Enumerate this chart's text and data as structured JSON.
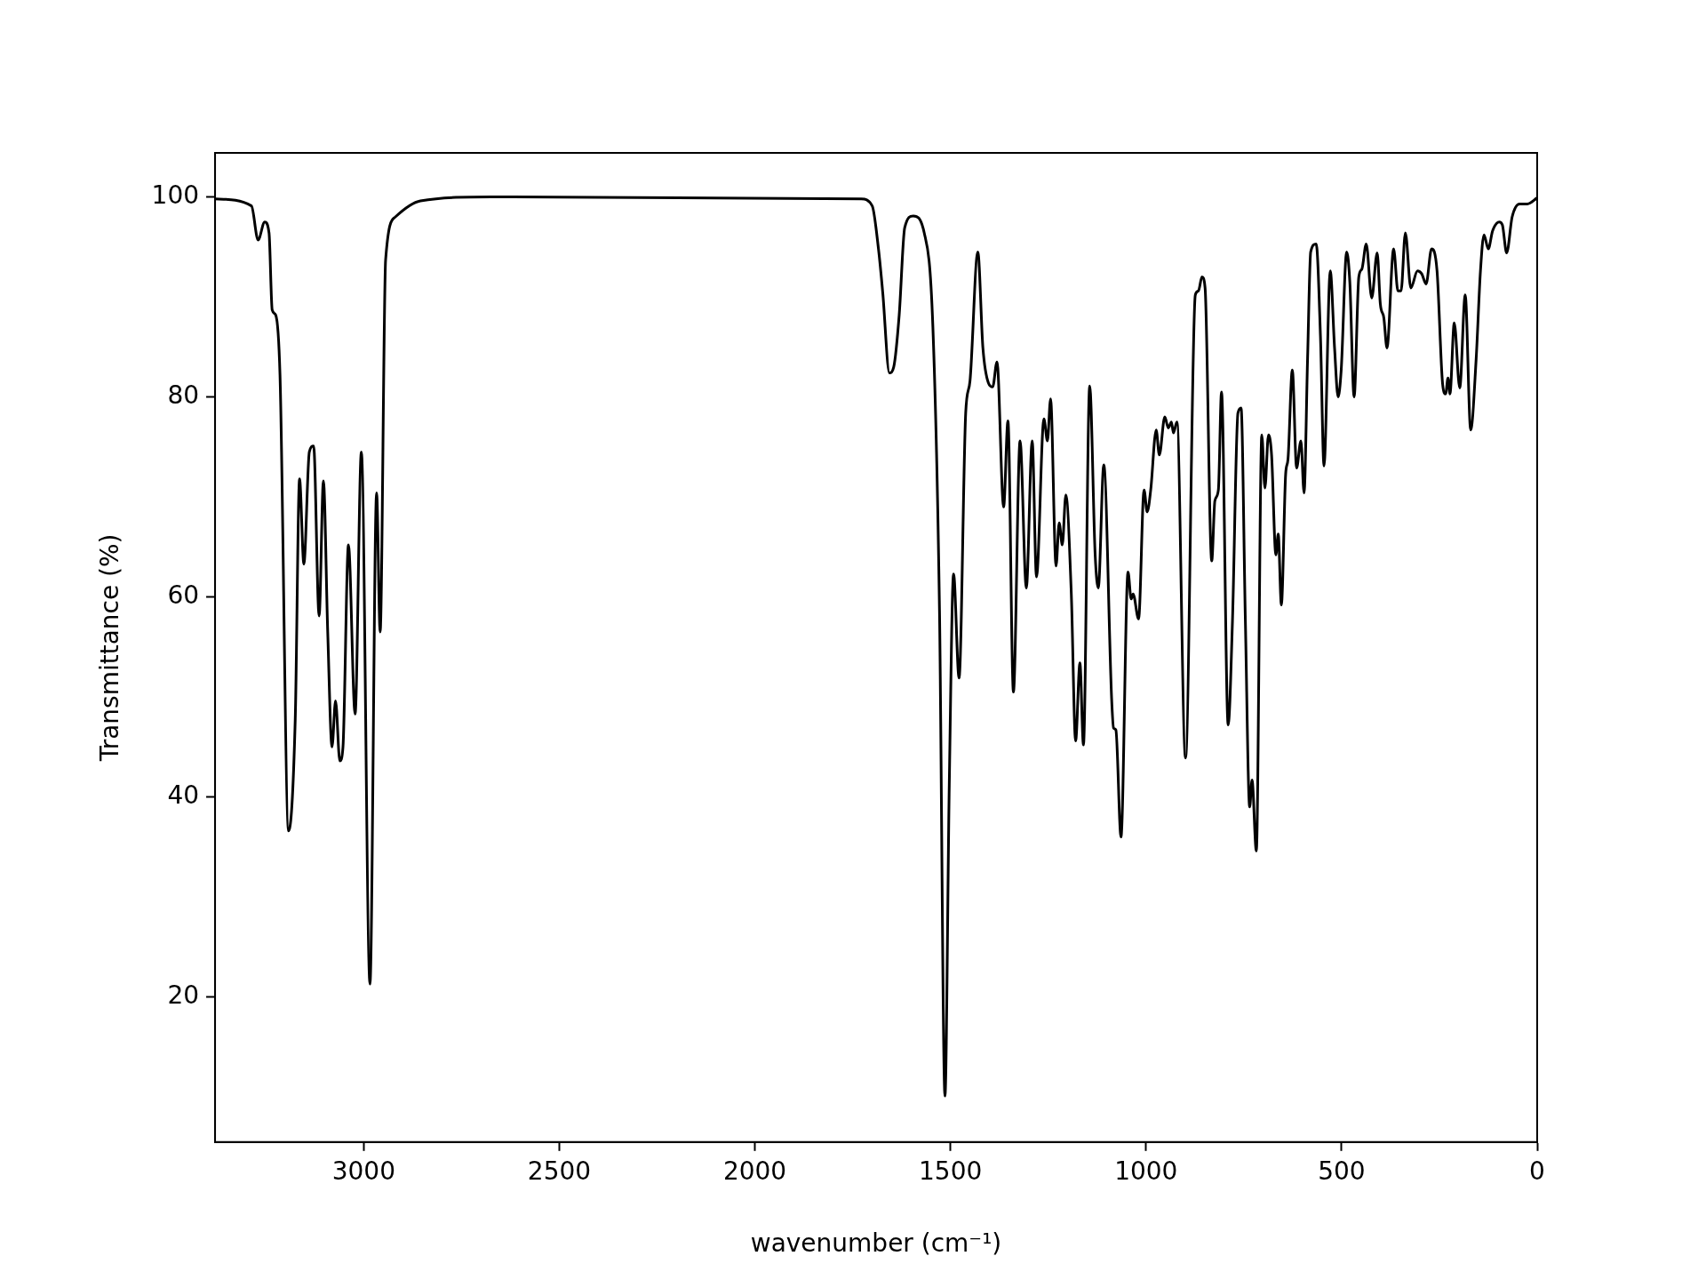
{
  "chart_data": {
    "type": "line",
    "xlabel": "wavenumber (cm⁻¹)",
    "ylabel": "Transmittance (%)",
    "xlim": [
      3380,
      0
    ],
    "ylim": [
      5.5,
      104.4
    ],
    "xticks": [
      3000,
      2500,
      2000,
      1500,
      1000,
      500,
      0
    ],
    "yticks": [
      20,
      40,
      60,
      80,
      100
    ],
    "legend": false,
    "marker": "none",
    "line_style": "solid",
    "series": [
      {
        "color": "#000000",
        "x": [
          3380,
          3287,
          3270,
          3253,
          3242,
          3234,
          3225,
          3214,
          3192,
          3175,
          3164,
          3153,
          3139,
          3128,
          3114,
          3103,
          3092,
          3081,
          3072,
          3061,
          3053,
          3039,
          3022,
          3006,
          2984,
          2967,
          2958,
          2944,
          2919,
          2855,
          2674,
          1728,
          1700,
          1684,
          1673,
          1656,
          1645,
          1631,
          1617,
          1595,
          1567,
          1545,
          1528,
          1514,
          1503,
          1492,
          1478,
          1461,
          1450,
          1430,
          1417,
          1403,
          1392,
          1381,
          1364,
          1353,
          1339,
          1322,
          1306,
          1291,
          1280,
          1261,
          1252,
          1244,
          1230,
          1222,
          1214,
          1205,
          1191,
          1180,
          1169,
          1160,
          1144,
          1130,
          1122,
          1108,
          1088,
          1083,
          1077,
          1064,
          1046,
          1038,
          1033,
          1019,
          1005,
          997,
          988,
          974,
          966,
          952,
          943,
          935,
          930,
          921,
          899,
          874,
          866,
          857,
          849,
          832,
          824,
          815,
          807,
          790,
          779,
          765,
          757,
          746,
          735,
          729,
          718,
          704,
          696,
          687,
          679,
          668,
          662,
          654,
          643,
          637,
          626,
          615,
          604,
          596,
          587,
          579,
          565,
          554,
          545,
          529,
          518,
          509,
          501,
          487,
          479,
          468,
          456,
          448,
          437,
          423,
          409,
          401,
          392,
          384,
          367,
          356,
          348,
          337,
          323,
          306,
          295,
          284,
          270,
          256,
          242,
          234,
          228,
          223,
          212,
          198,
          184,
          170,
          156,
          145,
          136,
          125,
          114,
          97,
          89,
          78,
          64,
          45,
          25,
          0
        ],
        "values": [
          99.8,
          99.1,
          95.7,
          97.5,
          96.4,
          88.7,
          88.2,
          82.2,
          36.6,
          47.8,
          71.8,
          63.3,
          74.5,
          75.1,
          58.1,
          71.6,
          56.5,
          45.0,
          49.6,
          43.6,
          45.0,
          65.2,
          48.3,
          74.5,
          21.3,
          70.4,
          56.5,
          93.7,
          98.0,
          99.6,
          100,
          99.8,
          99.1,
          94.8,
          90.4,
          82.4,
          83.0,
          88.2,
          96.9,
          98.1,
          96.4,
          87.1,
          58.7,
          10.1,
          41.2,
          62.3,
          51.9,
          78.4,
          81.6,
          94.5,
          84.9,
          81.4,
          81.0,
          83.5,
          69.0,
          77.6,
          50.5,
          75.6,
          60.9,
          75.6,
          62.0,
          77.8,
          75.6,
          79.8,
          63.1,
          67.4,
          65.2,
          70.2,
          60.3,
          45.6,
          53.4,
          45.2,
          81.1,
          64.2,
          60.9,
          73.2,
          49.9,
          46.9,
          46.7,
          36.0,
          62.5,
          59.8,
          60.3,
          57.8,
          70.7,
          68.5,
          70.7,
          76.7,
          74.2,
          78.0,
          76.9,
          77.5,
          76.4,
          77.5,
          43.9,
          90.2,
          90.6,
          92.0,
          90.9,
          63.6,
          69.6,
          70.7,
          80.5,
          47.2,
          57.6,
          78.4,
          78.9,
          57.6,
          39.0,
          41.7,
          34.6,
          76.2,
          70.9,
          76.2,
          74.2,
          64.2,
          66.3,
          59.2,
          72.3,
          73.8,
          82.7,
          72.9,
          75.6,
          70.4,
          83.8,
          94.5,
          95.3,
          86.0,
          73.1,
          92.6,
          84.9,
          80.0,
          82.7,
          94.5,
          91.5,
          80.0,
          92.0,
          92.8,
          95.3,
          89.9,
          94.4,
          89.3,
          87.9,
          84.9,
          94.8,
          90.6,
          90.6,
          96.4,
          90.9,
          92.6,
          92.3,
          91.3,
          94.8,
          92.6,
          81.4,
          80.3,
          81.9,
          80.3,
          87.4,
          80.9,
          90.2,
          76.7,
          83.8,
          92.6,
          96.2,
          94.8,
          96.6,
          97.5,
          97.2,
          94.4,
          98.0,
          99.3,
          99.3,
          99.9
        ]
      }
    ]
  }
}
